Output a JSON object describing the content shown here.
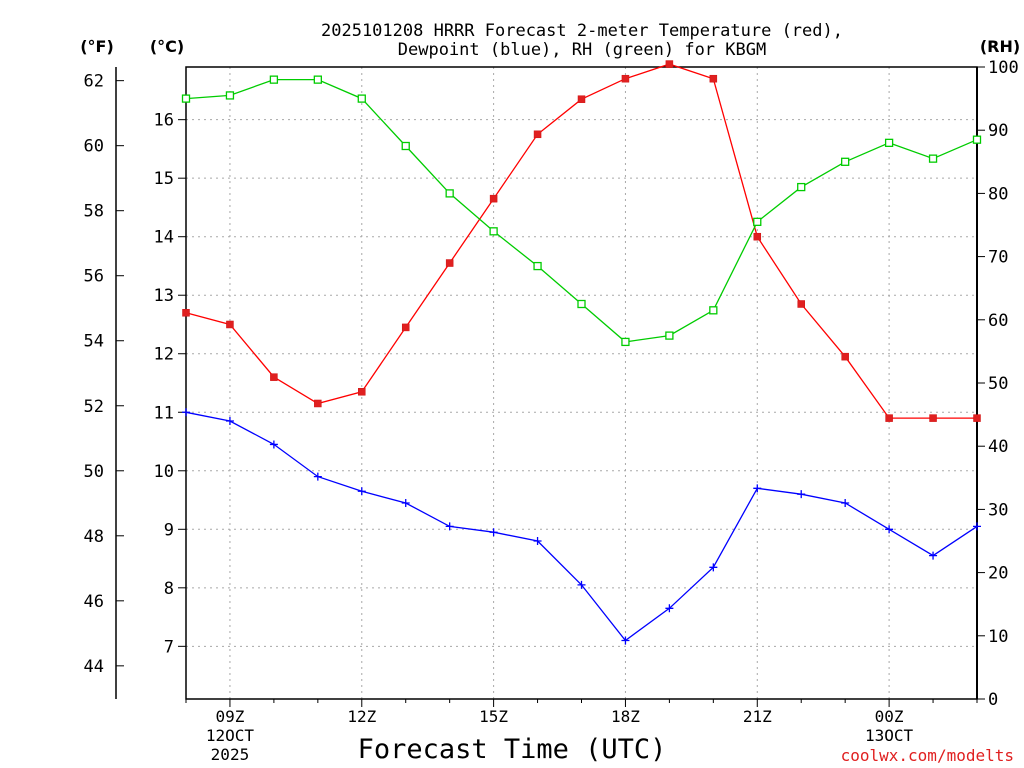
{
  "chart_data": {
    "type": "line",
    "title_line1": "2025101208 HRRR Forecast 2-meter Temperature (red),",
    "title_line2": "Dewpoint (blue), RH (green) for KBGM",
    "xlabel": "Forecast Time (UTC)",
    "credit": "coolwx.com/modelts",
    "unit_labels": {
      "fahrenheit": "(°F)",
      "celsius": "(°C)",
      "rh": "(RH)"
    },
    "x_hours": [
      8,
      9,
      10,
      11,
      12,
      13,
      14,
      15,
      16,
      17,
      18,
      19,
      20,
      21,
      22,
      23,
      24,
      25,
      26
    ],
    "xlim": [
      8,
      26
    ],
    "x_ticks": [
      {
        "hour": 9,
        "label": "09Z",
        "sub1": "12OCT",
        "sub2": "2025"
      },
      {
        "hour": 12,
        "label": "12Z",
        "sub1": "",
        "sub2": ""
      },
      {
        "hour": 15,
        "label": "15Z",
        "sub1": "",
        "sub2": ""
      },
      {
        "hour": 18,
        "label": "18Z",
        "sub1": "",
        "sub2": ""
      },
      {
        "hour": 21,
        "label": "21Z",
        "sub1": "",
        "sub2": ""
      },
      {
        "hour": 24,
        "label": "00Z",
        "sub1": "13OCT",
        "sub2": ""
      }
    ],
    "y_celsius": {
      "ylim": [
        6.1,
        16.9
      ],
      "ticks": [
        "7",
        "8",
        "9",
        "10",
        "11",
        "12",
        "13",
        "14",
        "15",
        "16"
      ]
    },
    "y_fahrenheit": {
      "ticks": [
        "44",
        "46",
        "48",
        "50",
        "52",
        "54",
        "56",
        "58",
        "60",
        "62"
      ]
    },
    "y_rh": {
      "ylim": [
        0,
        100
      ],
      "ticks": [
        "0",
        "10",
        "20",
        "30",
        "40",
        "50",
        "60",
        "70",
        "80",
        "90",
        "100"
      ]
    },
    "series": [
      {
        "name": "Temperature",
        "units": "C",
        "color": "#ff0000",
        "marker": "filled-square",
        "values": [
          12.7,
          12.5,
          11.6,
          11.15,
          11.35,
          12.45,
          13.55,
          14.65,
          15.75,
          16.35,
          16.7,
          16.95,
          16.7,
          14.0,
          12.85,
          11.95,
          10.9,
          10.9,
          10.9
        ]
      },
      {
        "name": "Dewpoint",
        "units": "C",
        "color": "#0000ff",
        "marker": "plus",
        "values": [
          11.0,
          10.85,
          10.45,
          9.9,
          9.65,
          9.45,
          9.05,
          8.95,
          8.8,
          8.05,
          7.1,
          7.65,
          8.35,
          9.7,
          9.6,
          9.45,
          9.0,
          8.55,
          9.05
        ]
      },
      {
        "name": "RH",
        "units": "%",
        "color": "#00cc00",
        "marker": "open-square",
        "values": [
          95.0,
          95.5,
          98.0,
          98.0,
          95.0,
          87.5,
          80.0,
          74.0,
          68.5,
          62.5,
          56.5,
          57.5,
          61.5,
          75.5,
          81.0,
          85.0,
          88.0,
          85.5,
          88.5
        ]
      }
    ]
  }
}
